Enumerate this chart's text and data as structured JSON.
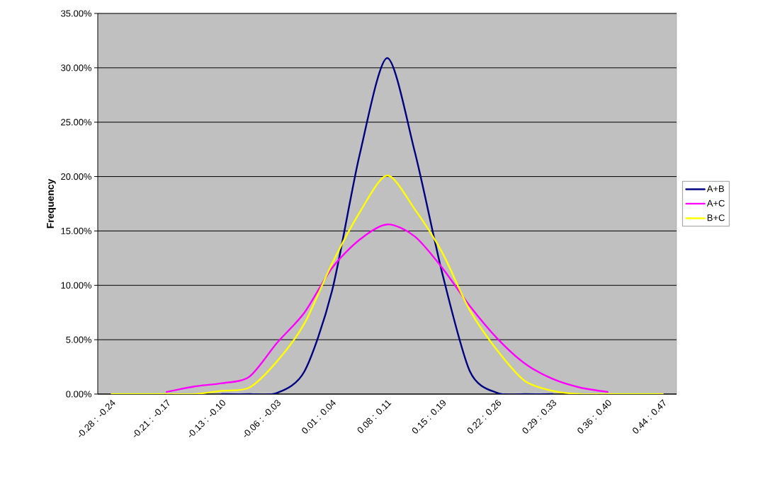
{
  "chart_data": {
    "type": "line",
    "ylabel": "Frequency",
    "categories": [
      "-0.28 : -0.24",
      null,
      "-0.21 : -0.17",
      null,
      "-0.13 : -0.10",
      null,
      "-0.06 : -0.03",
      null,
      "0.01 : 0.04",
      null,
      "0.08 : 0.11",
      null,
      "0.15 : 0.19",
      null,
      "0.22 : 0.26",
      null,
      "0.29 : 0.33",
      null,
      "0.36 : 0.40",
      null,
      "0.44 : 0.47"
    ],
    "series": [
      {
        "name": "A+B",
        "color": "#000080",
        "values": [
          null,
          null,
          null,
          null,
          0,
          0,
          0.1,
          2.1,
          9.5,
          22.0,
          30.9,
          22.3,
          11.1,
          2.1,
          0.1,
          0,
          0,
          null,
          null,
          null,
          null
        ]
      },
      {
        "name": "A+C",
        "color": "#ff00ff",
        "values": [
          null,
          null,
          0.2,
          0.7,
          1.0,
          1.6,
          4.7,
          7.5,
          11.6,
          14.2,
          15.6,
          14.5,
          11.6,
          8.1,
          5.1,
          2.8,
          1.4,
          0.6,
          0.2,
          null,
          null
        ]
      },
      {
        "name": "B+C",
        "color": "#ffff00",
        "values": [
          0,
          0,
          0,
          0,
          0.3,
          0.6,
          3.0,
          6.5,
          12.0,
          16.7,
          20.1,
          17.0,
          13.0,
          7.7,
          4.0,
          1.2,
          0.3,
          0,
          0,
          0,
          0
        ]
      }
    ],
    "ylim": [
      0,
      35
    ],
    "yticks": [
      {
        "value": 0,
        "label": "0.00%"
      },
      {
        "value": 5,
        "label": "5.00%"
      },
      {
        "value": 10,
        "label": "10.00%"
      },
      {
        "value": 15,
        "label": "15.00%"
      },
      {
        "value": 20,
        "label": "20.00%"
      },
      {
        "value": 25,
        "label": "25.00%"
      },
      {
        "value": 30,
        "label": "30.00%"
      },
      {
        "value": 35,
        "label": "35.00%"
      }
    ],
    "grid": "y",
    "legend": "right",
    "marker": "none",
    "line_style": "solid"
  }
}
